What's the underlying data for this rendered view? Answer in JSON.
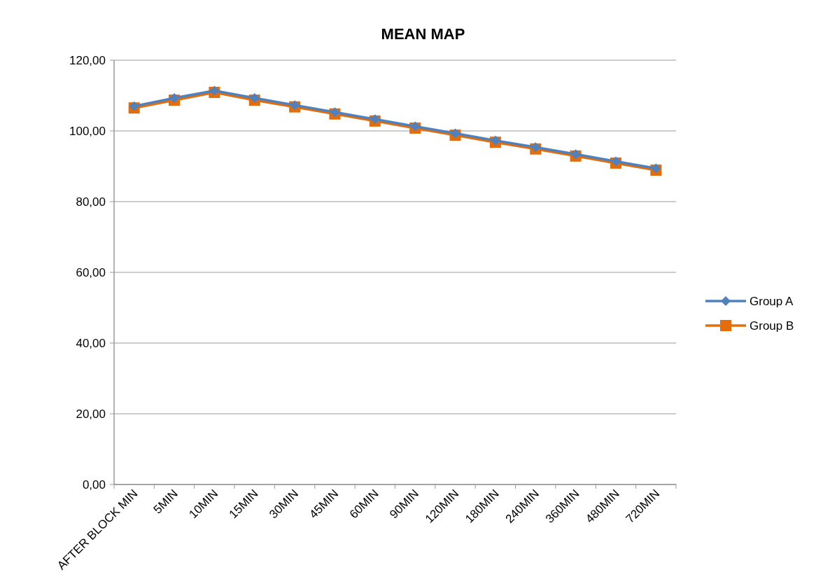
{
  "chart_data": {
    "type": "line",
    "title": "MEAN MAP",
    "categories": [
      "AFTER BLOCK MIN",
      "5MIN",
      "10MIN",
      "15MIN",
      "30MIN",
      "45MIN",
      "60MIN",
      "90MIN",
      "120MIN",
      "180MIN",
      "240MIN",
      "360MIN",
      "480MIN",
      "720MIN"
    ],
    "series": [
      {
        "name": "Group A",
        "color": "#4f81bd",
        "marker": "diamond",
        "values": [
          107,
          109.3,
          111.4,
          109.3,
          107.3,
          105.3,
          103.3,
          101.3,
          99.3,
          97.3,
          95.4,
          93.4,
          91.4,
          89.4
        ]
      },
      {
        "name": "Group B",
        "color": "#e46c0a",
        "marker": "square",
        "values": [
          106.5,
          108.7,
          110.9,
          108.7,
          106.8,
          104.8,
          102.8,
          100.8,
          98.8,
          96.8,
          94.9,
          92.9,
          90.9,
          88.9
        ]
      }
    ],
    "ylim": [
      0,
      120
    ],
    "yticks": [
      {
        "value": 0,
        "label": "0,00"
      },
      {
        "value": 20,
        "label": "20,00"
      },
      {
        "value": 40,
        "label": "40,00"
      },
      {
        "value": 60,
        "label": "60,00"
      },
      {
        "value": 80,
        "label": "80,00"
      },
      {
        "value": 100,
        "label": "100,00"
      },
      {
        "value": 120,
        "label": "120,00"
      }
    ],
    "grid": "y",
    "legend": "right"
  }
}
